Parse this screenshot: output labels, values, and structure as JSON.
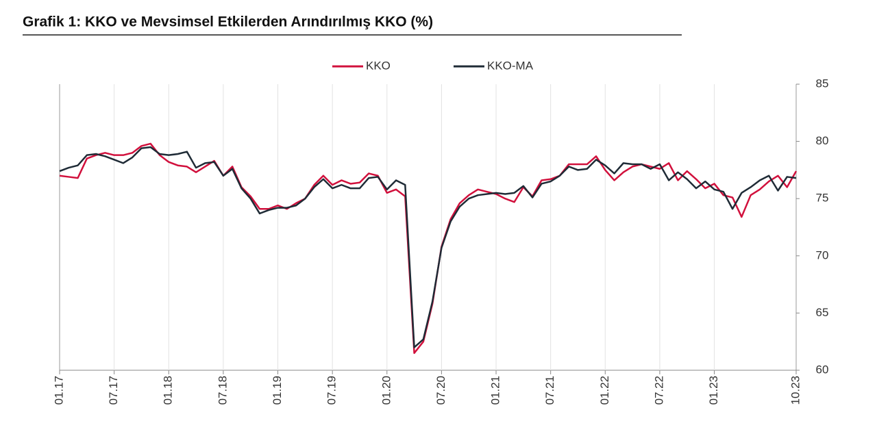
{
  "chart_data": {
    "type": "line",
    "title": "Grafik 1: KKO ve Mevsimsel Etkilerden Arındırılmış KKO (%)",
    "categories": [
      "01.17",
      null,
      null,
      null,
      null,
      null,
      "07.17",
      null,
      null,
      null,
      null,
      null,
      "01.18",
      null,
      null,
      null,
      null,
      null,
      "07.18",
      null,
      null,
      null,
      null,
      null,
      "01.19",
      null,
      null,
      null,
      null,
      null,
      "07.19",
      null,
      null,
      null,
      null,
      null,
      "01.20",
      null,
      null,
      null,
      null,
      null,
      "07.20",
      null,
      null,
      null,
      null,
      null,
      "01.21",
      null,
      null,
      null,
      null,
      null,
      "07.21",
      null,
      null,
      null,
      null,
      null,
      "01.22",
      null,
      null,
      null,
      null,
      null,
      "07.22",
      null,
      null,
      null,
      null,
      null,
      "01.23",
      null,
      null,
      null,
      null,
      null,
      null,
      null,
      null,
      "10.23"
    ],
    "series": [
      {
        "name": "KKO",
        "color": "#d1103c",
        "values": [
          77.0,
          76.9,
          76.8,
          78.5,
          78.8,
          79.0,
          78.8,
          78.8,
          79.0,
          79.6,
          79.8,
          78.8,
          78.2,
          77.9,
          77.8,
          77.3,
          77.8,
          78.3,
          77.0,
          77.8,
          76.0,
          75.2,
          74.1,
          74.1,
          74.4,
          74.1,
          74.6,
          75.0,
          76.2,
          77.0,
          76.2,
          76.6,
          76.3,
          76.4,
          77.2,
          77.0,
          75.5,
          75.8,
          75.2,
          61.5,
          62.5,
          65.8,
          70.8,
          73.2,
          74.6,
          75.3,
          75.8,
          75.6,
          75.4,
          75.0,
          74.7,
          76.0,
          75.2,
          76.6,
          76.7,
          77.0,
          78.0,
          78.0,
          78.0,
          78.7,
          77.5,
          76.6,
          77.3,
          77.8,
          78.0,
          77.8,
          77.6,
          78.1,
          76.6,
          77.4,
          76.7,
          75.9,
          76.3,
          75.3,
          75.1,
          73.4,
          75.3,
          75.8,
          76.5,
          77.0,
          76.0,
          77.4
        ]
      },
      {
        "name": "KKO-MA",
        "color": "#1f2b36",
        "values": [
          77.4,
          77.7,
          77.9,
          78.8,
          78.9,
          78.7,
          78.4,
          78.1,
          78.6,
          79.4,
          79.5,
          78.9,
          78.8,
          78.9,
          79.1,
          77.7,
          78.1,
          78.2,
          77.0,
          77.6,
          75.9,
          75.0,
          73.7,
          74.0,
          74.2,
          74.2,
          74.4,
          75.0,
          76.0,
          76.7,
          75.9,
          76.2,
          75.9,
          75.9,
          76.8,
          76.9,
          75.8,
          76.6,
          76.2,
          62.0,
          62.7,
          66.0,
          70.7,
          73.0,
          74.3,
          75.0,
          75.3,
          75.4,
          75.5,
          75.4,
          75.5,
          76.1,
          75.1,
          76.3,
          76.5,
          77.0,
          77.8,
          77.5,
          77.6,
          78.4,
          77.9,
          77.2,
          78.1,
          78.0,
          78.0,
          77.6,
          78.0,
          76.6,
          77.3,
          76.7,
          75.9,
          76.5,
          75.8,
          75.6,
          74.1,
          75.5,
          76.0,
          76.6,
          77.0,
          75.7,
          76.9,
          76.8
        ]
      }
    ],
    "ylim": [
      60,
      85
    ],
    "yticks": [
      60,
      65,
      70,
      75,
      80,
      85
    ],
    "grid": true
  }
}
